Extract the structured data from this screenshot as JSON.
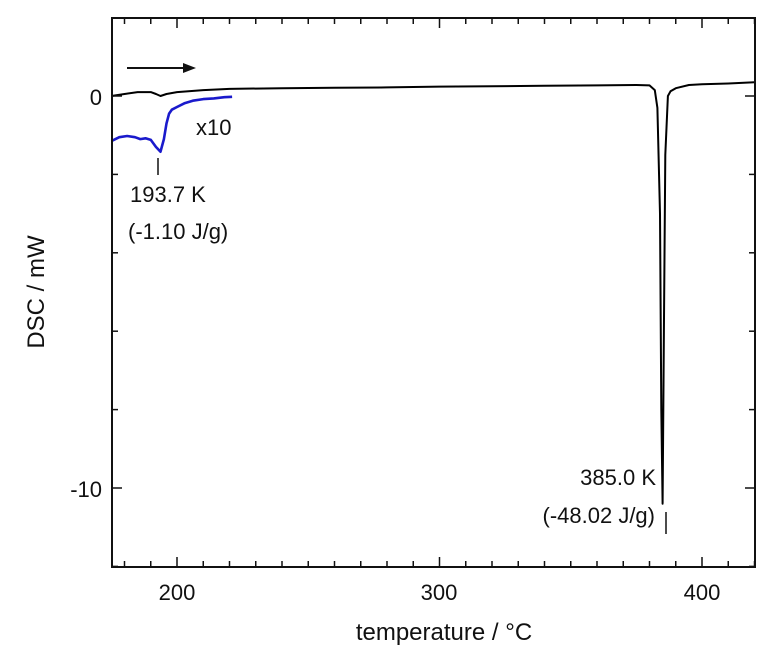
{
  "chart_data": {
    "type": "line",
    "title": "",
    "xlabel": "temperature / °C",
    "ylabel": "DSC / mW",
    "xlim": [
      175,
      420
    ],
    "ylim": [
      -12,
      2
    ],
    "x_major_ticks": [
      200,
      300,
      400
    ],
    "x_minor_step": 10,
    "y_major_ticks": [
      0,
      -10
    ],
    "y_minor_step": 2,
    "grid": false,
    "legend": "none",
    "series": [
      {
        "style": "main trace",
        "color": "#000000",
        "x": [
          175,
          180,
          185,
          190,
          192,
          193.7,
          196,
          200,
          210,
          220,
          240,
          260,
          280,
          300,
          320,
          340,
          360,
          375,
          380,
          382,
          383,
          384,
          384.5,
          385.0,
          385.5,
          386,
          387,
          388,
          390,
          395,
          400,
          410,
          420
        ],
        "y": [
          0.0,
          0.05,
          0.1,
          0.1,
          0.05,
          0.0,
          0.05,
          0.1,
          0.15,
          0.18,
          0.2,
          0.21,
          0.22,
          0.24,
          0.25,
          0.26,
          0.27,
          0.28,
          0.27,
          0.15,
          -0.3,
          -3.0,
          -8.0,
          -10.4,
          -6.0,
          -1.5,
          0.0,
          0.12,
          0.2,
          0.28,
          0.3,
          0.32,
          0.35
        ]
      },
      {
        "style": "magnified trace",
        "color": "#1a1acc",
        "x": [
          175,
          178,
          181,
          184,
          186,
          188,
          190,
          192,
          193.7,
          195,
          196,
          197,
          198,
          200,
          203,
          206,
          210,
          214,
          218,
          221
        ],
        "y": [
          -1.15,
          -1.05,
          -1.02,
          -1.05,
          -1.1,
          -1.08,
          -1.12,
          -1.3,
          -1.42,
          -1.1,
          -0.7,
          -0.45,
          -0.35,
          -0.28,
          -0.18,
          -0.12,
          -0.08,
          -0.06,
          -0.03,
          -0.02
        ]
      }
    ],
    "annotations": {
      "magnification": "x10",
      "peak1_temp": "193.7 K",
      "peak1_enthalpy": "(-1.10 J/g)",
      "peak2_temp": "385.0 K",
      "peak2_enthalpy": "(-48.02 J/g)"
    },
    "arrow_direction": "heating (right)"
  }
}
